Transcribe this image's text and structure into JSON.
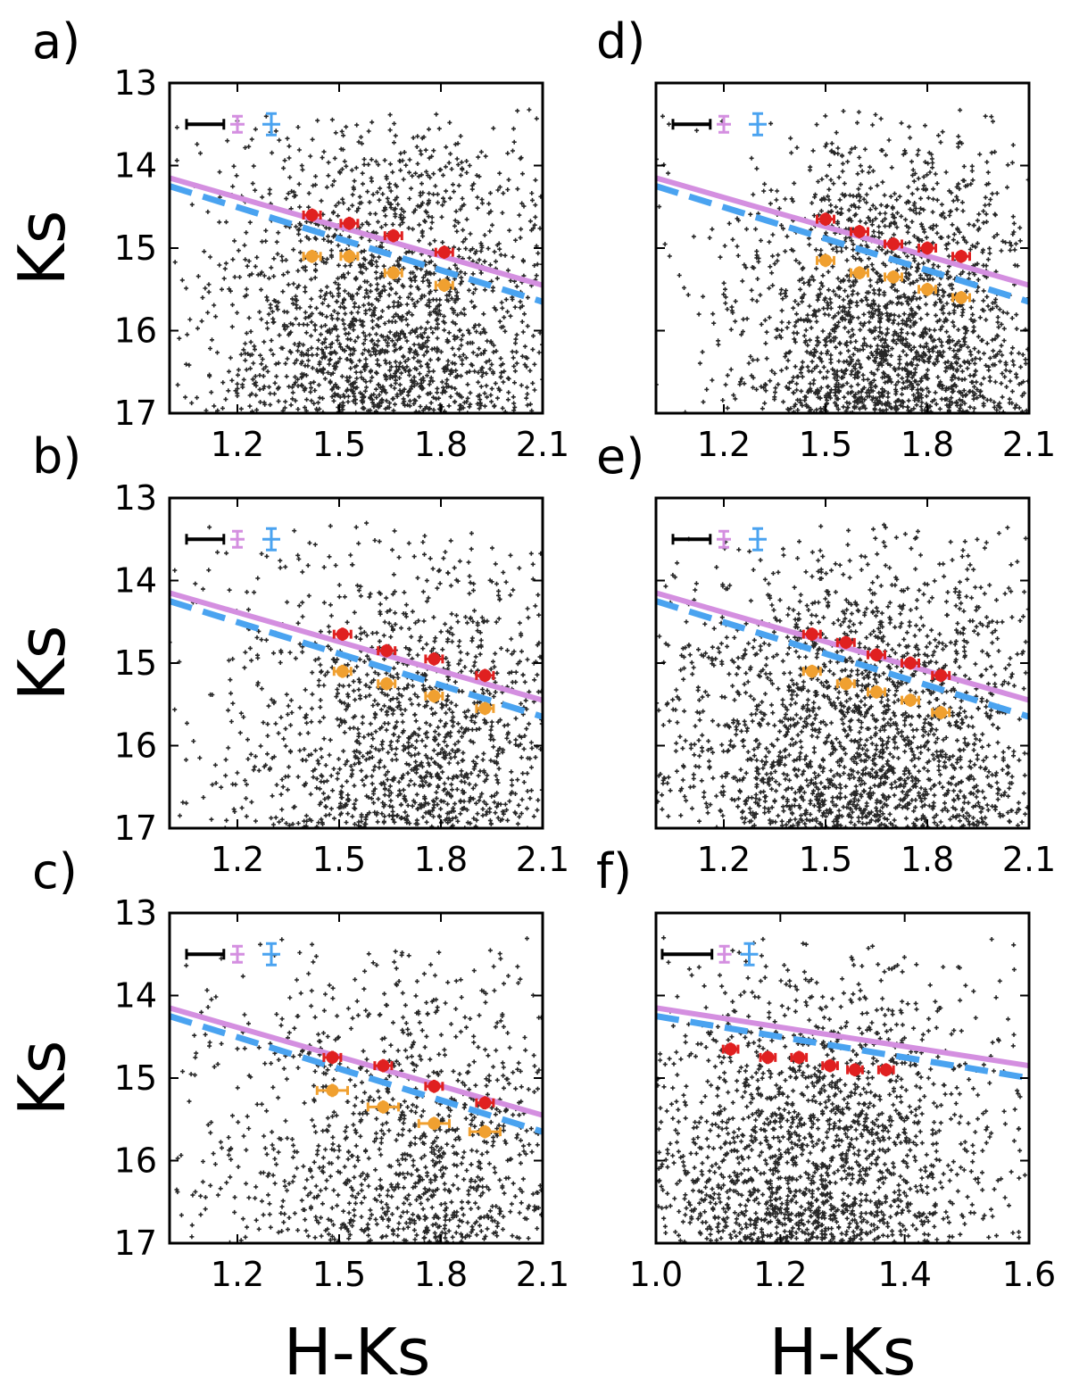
{
  "figure": {
    "xlabel": "H-Ks",
    "ylabel": "Ks",
    "colors": {
      "stars": "#000000",
      "solid_line": "#d48fe0",
      "dashed_line": "#4aa3f0",
      "red_points": "#e02020",
      "orange_points": "#f0a030",
      "errbar_black": "#000000",
      "errbar_pink": "#d48fe0",
      "errbar_blue": "#4aa3f0"
    }
  },
  "chart_data": [
    {
      "type": "scatter",
      "panel": "a)",
      "title": "",
      "xlabel": "",
      "ylabel": "Ks",
      "xlim": [
        1.0,
        2.1
      ],
      "ylim": [
        17,
        13
      ],
      "xticks": [
        1.2,
        1.5,
        1.8,
        2.1
      ],
      "xtick_labels": [
        "1.2",
        "1.5",
        "1.8",
        "2.1"
      ],
      "yticks": [
        13,
        14,
        15,
        16,
        17
      ],
      "ytick_labels": [
        "13",
        "14",
        "15",
        "16",
        "17"
      ],
      "stars": {
        "x_center": 1.65,
        "x_spread": 0.25,
        "y_min": 13.3,
        "y_max": 17,
        "count": 1700
      },
      "solid_line": {
        "x": [
          1.0,
          2.1
        ],
        "y": [
          14.15,
          15.45
        ]
      },
      "dashed_line": {
        "x": [
          1.0,
          2.1
        ],
        "y": [
          14.25,
          15.65
        ]
      },
      "red_points": {
        "x": [
          1.42,
          1.53,
          1.66,
          1.81
        ],
        "y": [
          14.6,
          14.7,
          14.85,
          15.05
        ],
        "xerr": 0.025,
        "yerr": 0.08
      },
      "orange_points": {
        "x": [
          1.42,
          1.53,
          1.66,
          1.81
        ],
        "y": [
          15.1,
          15.1,
          15.3,
          15.45
        ],
        "xerr": 0.025,
        "yerr": 0.08
      },
      "error_samples": {
        "black": {
          "x": [
            1.05,
            1.16
          ],
          "y": 13.5
        },
        "pink": {
          "x": 1.2,
          "y": 13.5
        },
        "blue": {
          "x": 1.3,
          "y": 13.5
        }
      }
    },
    {
      "type": "scatter",
      "panel": "b)",
      "title": "",
      "xlabel": "",
      "ylabel": "Ks",
      "xlim": [
        1.0,
        2.1
      ],
      "ylim": [
        17,
        13
      ],
      "xticks": [
        1.2,
        1.5,
        1.8,
        2.1
      ],
      "xtick_labels": [
        "1.2",
        "1.5",
        "1.8",
        "2.1"
      ],
      "yticks": [
        13,
        14,
        15,
        16,
        17
      ],
      "ytick_labels": [
        "13",
        "14",
        "15",
        "16",
        "17"
      ],
      "stars": {
        "x_center": 1.72,
        "x_spread": 0.25,
        "y_min": 13.3,
        "y_max": 17,
        "count": 1250
      },
      "solid_line": {
        "x": [
          1.0,
          2.1
        ],
        "y": [
          14.15,
          15.45
        ]
      },
      "dashed_line": {
        "x": [
          1.0,
          2.1
        ],
        "y": [
          14.25,
          15.65
        ]
      },
      "red_points": {
        "x": [
          1.51,
          1.64,
          1.78,
          1.93
        ],
        "y": [
          14.65,
          14.85,
          14.95,
          15.15
        ],
        "xerr": 0.025,
        "yerr": 0.08
      },
      "orange_points": {
        "x": [
          1.51,
          1.64,
          1.78,
          1.93
        ],
        "y": [
          15.1,
          15.25,
          15.4,
          15.55
        ],
        "xerr": 0.025,
        "yerr": 0.08
      },
      "error_samples": {
        "black": {
          "x": [
            1.05,
            1.16
          ],
          "y": 13.5
        },
        "pink": {
          "x": 1.2,
          "y": 13.5
        },
        "blue": {
          "x": 1.3,
          "y": 13.5
        }
      }
    },
    {
      "type": "scatter",
      "panel": "c)",
      "title": "",
      "xlabel": "H-Ks",
      "ylabel": "Ks",
      "xlim": [
        1.0,
        2.1
      ],
      "ylim": [
        17,
        13
      ],
      "xticks": [
        1.2,
        1.5,
        1.8,
        2.1
      ],
      "xtick_labels": [
        "1.2",
        "1.5",
        "1.8",
        "2.1"
      ],
      "yticks": [
        13,
        14,
        15,
        16,
        17
      ],
      "ytick_labels": [
        "13",
        "14",
        "15",
        "16",
        "17"
      ],
      "stars": {
        "x_center": 1.72,
        "x_spread": 0.28,
        "y_min": 13.3,
        "y_max": 17,
        "count": 1050
      },
      "solid_line": {
        "x": [
          1.0,
          2.1
        ],
        "y": [
          14.15,
          15.45
        ]
      },
      "dashed_line": {
        "x": [
          1.0,
          2.1
        ],
        "y": [
          14.25,
          15.65
        ]
      },
      "red_points": {
        "x": [
          1.48,
          1.63,
          1.78,
          1.93
        ],
        "y": [
          14.75,
          14.85,
          15.1,
          15.3
        ],
        "xerr": 0.025,
        "yerr": 0.08
      },
      "orange_points": {
        "x": [
          1.48,
          1.63,
          1.78,
          1.93
        ],
        "y": [
          15.15,
          15.35,
          15.55,
          15.65
        ],
        "xerr": 0.045,
        "yerr": 0.08
      },
      "error_samples": {
        "black": {
          "x": [
            1.05,
            1.16
          ],
          "y": 13.5
        },
        "pink": {
          "x": 1.2,
          "y": 13.5
        },
        "blue": {
          "x": 1.3,
          "y": 13.5
        }
      }
    },
    {
      "type": "scatter",
      "panel": "d)",
      "title": "",
      "xlabel": "",
      "ylabel": "",
      "xlim": [
        1.0,
        2.1
      ],
      "ylim": [
        17,
        13
      ],
      "xticks": [
        1.2,
        1.5,
        1.8,
        2.1
      ],
      "xtick_labels": [
        "1.2",
        "1.5",
        "1.8",
        "2.1"
      ],
      "yticks": [
        13,
        14,
        15,
        16,
        17
      ],
      "ytick_labels": [],
      "stars": {
        "x_center": 1.7,
        "x_spread": 0.22,
        "y_min": 13.3,
        "y_max": 17,
        "count": 1800
      },
      "solid_line": {
        "x": [
          1.0,
          2.1
        ],
        "y": [
          14.15,
          15.45
        ]
      },
      "dashed_line": {
        "x": [
          1.0,
          2.1
        ],
        "y": [
          14.25,
          15.65
        ]
      },
      "red_points": {
        "x": [
          1.5,
          1.6,
          1.7,
          1.8,
          1.9
        ],
        "y": [
          14.65,
          14.8,
          14.95,
          15.0,
          15.1
        ],
        "xerr": 0.025,
        "yerr": 0.08
      },
      "orange_points": {
        "x": [
          1.5,
          1.6,
          1.7,
          1.8,
          1.9
        ],
        "y": [
          15.15,
          15.3,
          15.35,
          15.5,
          15.6
        ],
        "xerr": 0.025,
        "yerr": 0.08
      },
      "error_samples": {
        "black": {
          "x": [
            1.05,
            1.16
          ],
          "y": 13.5
        },
        "pink": {
          "x": 1.2,
          "y": 13.5
        },
        "blue": {
          "x": 1.3,
          "y": 13.5
        }
      }
    },
    {
      "type": "scatter",
      "panel": "e)",
      "title": "",
      "xlabel": "",
      "ylabel": "",
      "xlim": [
        1.0,
        2.1
      ],
      "ylim": [
        17,
        13
      ],
      "xticks": [
        1.2,
        1.5,
        1.8,
        2.1
      ],
      "xtick_labels": [
        "1.2",
        "1.5",
        "1.8",
        "2.1"
      ],
      "yticks": [
        13,
        14,
        15,
        16,
        17
      ],
      "ytick_labels": [],
      "stars": {
        "x_center": 1.62,
        "x_spread": 0.3,
        "y_min": 13.3,
        "y_max": 17,
        "count": 2000
      },
      "solid_line": {
        "x": [
          1.0,
          2.1
        ],
        "y": [
          14.15,
          15.45
        ]
      },
      "dashed_line": {
        "x": [
          1.0,
          2.1
        ],
        "y": [
          14.25,
          15.65
        ]
      },
      "red_points": {
        "x": [
          1.46,
          1.56,
          1.65,
          1.75,
          1.84
        ],
        "y": [
          14.65,
          14.75,
          14.9,
          15.0,
          15.15
        ],
        "xerr": 0.025,
        "yerr": 0.08
      },
      "orange_points": {
        "x": [
          1.46,
          1.56,
          1.65,
          1.75,
          1.84
        ],
        "y": [
          15.1,
          15.25,
          15.35,
          15.45,
          15.6
        ],
        "xerr": 0.025,
        "yerr": 0.08
      },
      "error_samples": {
        "black": {
          "x": [
            1.05,
            1.16
          ],
          "y": 13.5
        },
        "pink": {
          "x": 1.2,
          "y": 13.5
        },
        "blue": {
          "x": 1.3,
          "y": 13.5
        }
      }
    },
    {
      "type": "scatter",
      "panel": "f)",
      "title": "",
      "xlabel": "H-Ks",
      "ylabel": "",
      "xlim": [
        1.0,
        1.6
      ],
      "ylim": [
        17,
        13
      ],
      "xticks": [
        1.0,
        1.2,
        1.4,
        1.6
      ],
      "xtick_labels": [
        "1.0",
        "1.2",
        "1.4",
        "1.6"
      ],
      "yticks": [
        13,
        14,
        15,
        16,
        17
      ],
      "ytick_labels": [],
      "stars": {
        "x_center": 1.25,
        "x_spread": 0.14,
        "y_min": 13.3,
        "y_max": 17,
        "count": 1700
      },
      "solid_line": {
        "x": [
          1.0,
          1.6
        ],
        "y": [
          14.15,
          14.85
        ]
      },
      "dashed_line": {
        "x": [
          1.0,
          1.6
        ],
        "y": [
          14.25,
          15.0
        ]
      },
      "red_points": {
        "x": [
          1.12,
          1.18,
          1.23,
          1.28,
          1.32,
          1.37
        ],
        "y": [
          14.65,
          14.75,
          14.75,
          14.85,
          14.9,
          14.9
        ],
        "xerr": 0.012,
        "yerr": 0.08
      },
      "orange_points": null,
      "error_samples": {
        "black": {
          "x": [
            1.01,
            1.09
          ],
          "y": 13.5
        },
        "pink": {
          "x": 1.11,
          "y": 13.5
        },
        "blue": {
          "x": 1.15,
          "y": 13.5
        }
      }
    }
  ]
}
